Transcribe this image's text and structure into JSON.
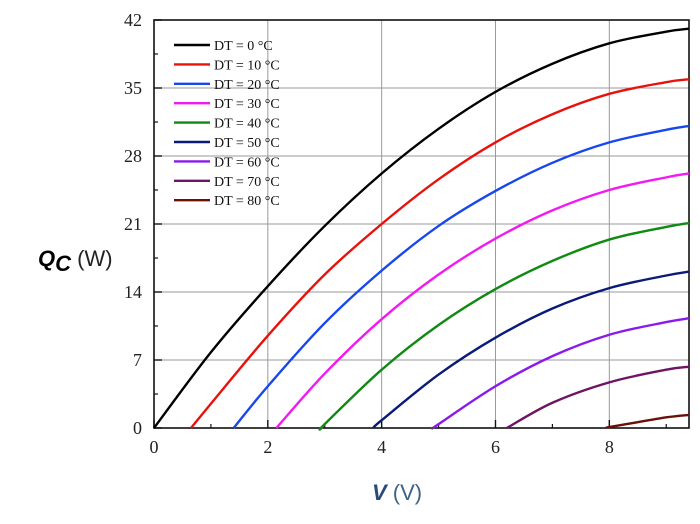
{
  "chart_data": {
    "type": "line",
    "xlabel": {
      "var": "V",
      "unit": " (V)"
    },
    "ylabel": {
      "var": "Q",
      "sub": "C",
      "unit": " (W)"
    },
    "xlim": [
      0,
      9.4
    ],
    "ylim": [
      0,
      42
    ],
    "xticks": [
      0,
      2,
      4,
      6,
      8
    ],
    "yticks": [
      0,
      7,
      14,
      21,
      28,
      35,
      42
    ],
    "grid": true,
    "legend_position": "top-left",
    "series": [
      {
        "name": "DT = 0 °C",
        "color": "#000000",
        "x": [
          0,
          1,
          2,
          3,
          4,
          5,
          6,
          7,
          8,
          9,
          9.4
        ],
        "y": [
          0,
          7.8,
          14.6,
          20.8,
          26.2,
          30.8,
          34.6,
          37.5,
          39.6,
          40.8,
          41.1
        ]
      },
      {
        "name": "DT = 10 °C",
        "color": "#e8120c",
        "x": [
          0.65,
          1,
          2,
          3,
          4,
          5,
          6,
          7,
          8,
          9,
          9.4
        ],
        "y": [
          0,
          2.5,
          9.5,
          15.8,
          21.0,
          25.6,
          29.4,
          32.3,
          34.4,
          35.6,
          35.9
        ]
      },
      {
        "name": "DT = 20 °C",
        "color": "#1747ee",
        "x": [
          1.4,
          2,
          3,
          4,
          5,
          6,
          7,
          8,
          9,
          9.4
        ],
        "y": [
          0,
          4.3,
          10.8,
          16.2,
          20.8,
          24.4,
          27.3,
          29.4,
          30.7,
          31.1
        ]
      },
      {
        "name": "DT = 30 °C",
        "color": "#f21af2",
        "x": [
          2.15,
          3,
          4,
          5,
          6,
          7,
          8,
          9,
          9.4
        ],
        "y": [
          0,
          5.6,
          11.2,
          15.8,
          19.5,
          22.4,
          24.5,
          25.8,
          26.2
        ]
      },
      {
        "name": "DT = 40 °C",
        "color": "#0f8a12",
        "x": [
          2.95,
          3,
          4,
          5,
          6,
          7,
          8,
          9,
          9.4
        ],
        "y": [
          0,
          0.4,
          6.0,
          10.6,
          14.3,
          17.2,
          19.4,
          20.7,
          21.1
        ]
      },
      {
        "name": "DT = 50 °C",
        "color": "#0a1a78",
        "x": [
          3.85,
          4,
          5,
          6,
          7,
          8,
          9,
          9.4
        ],
        "y": [
          0,
          0.8,
          5.5,
          9.3,
          12.3,
          14.4,
          15.7,
          16.1
        ]
      },
      {
        "name": "DT = 60 °C",
        "color": "#8a1aec",
        "x": [
          4.9,
          5,
          6,
          7,
          8,
          9,
          9.4
        ],
        "y": [
          0,
          0.4,
          4.3,
          7.4,
          9.6,
          10.9,
          11.3
        ]
      },
      {
        "name": "DT = 70 °C",
        "color": "#6e1463",
        "x": [
          6.2,
          7,
          8,
          9,
          9.4
        ],
        "y": [
          0,
          2.6,
          4.7,
          6.0,
          6.3
        ]
      },
      {
        "name": "DT = 80 °C",
        "color": "#6b1008",
        "x": [
          7.95,
          8,
          8.5,
          9,
          9.4
        ],
        "y": [
          0,
          0.1,
          0.6,
          1.1,
          1.35
        ]
      }
    ]
  }
}
